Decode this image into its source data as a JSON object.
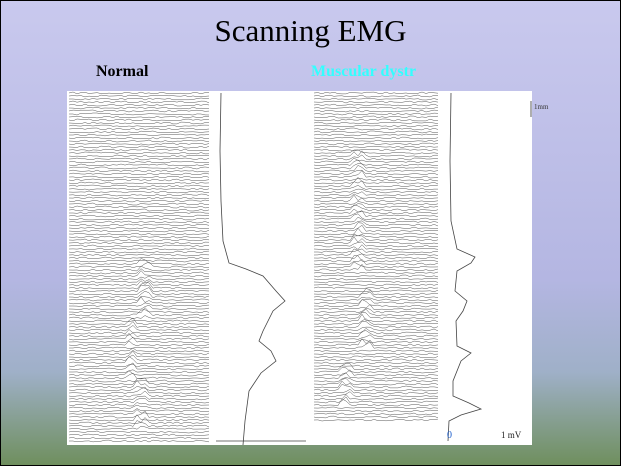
{
  "slide": {
    "title": "Scanning EMG",
    "panels": [
      {
        "label": "Normal"
      },
      {
        "label": "Muscular dystr"
      }
    ],
    "scale": {
      "depth": "1mm",
      "zero": "0",
      "amplitude": "1 mV"
    }
  }
}
